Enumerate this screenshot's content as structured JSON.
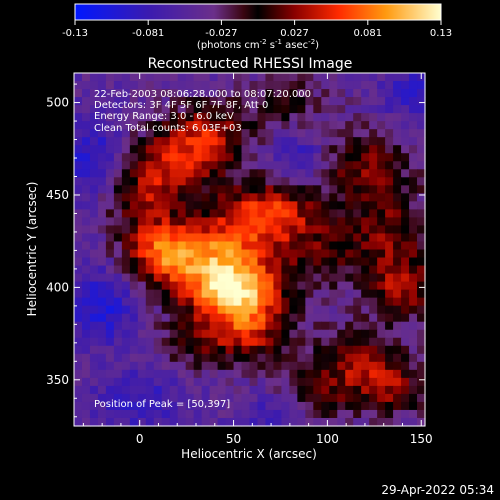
{
  "chart_data": {
    "type": "heatmap",
    "title": "Reconstructed RHESSI Image",
    "xlabel": "Heliocentric X (arcsec)",
    "ylabel": "Heliocentric Y (arcsec)",
    "xlim": [
      -35,
      152
    ],
    "ylim": [
      325,
      516
    ],
    "x_ticks": [
      0,
      50,
      100,
      150
    ],
    "y_ticks": [
      350,
      400,
      450,
      500
    ],
    "colorbar": {
      "range": [
        -0.13,
        0.13
      ],
      "ticks": [
        "-0.13",
        "-0.081",
        "-0.027",
        "0.027",
        "0.081",
        "0.13"
      ],
      "label": "(photons cm",
      "label_exp1": "-2",
      "label_mid": " s",
      "label_exp2": "-1",
      "label_end": " asec",
      "label_exp3": "-2",
      "label_close": ")"
    },
    "annotations": {
      "time_range": "22-Feb-2003 08:06:28.000 to 08:07:20.000",
      "detectors": "Detectors: 3F 4F 5F 6F 7F 8F, Att 0",
      "energy": "Energy Range: 3.0 - 6.0 keV",
      "clean": "Clean    Total counts: 6.03E+03",
      "peak": "Position of Peak = [50,397]"
    },
    "peak": [
      50,
      397
    ],
    "sources": [
      {
        "x": 50,
        "y": 397,
        "amp": 0.14,
        "sx": 18,
        "sy": 12
      },
      {
        "x": 38,
        "y": 418,
        "amp": 0.1,
        "sx": 22,
        "sy": 14
      },
      {
        "x": 68,
        "y": 440,
        "amp": 0.1,
        "sx": 18,
        "sy": 12
      },
      {
        "x": 10,
        "y": 420,
        "amp": 0.08,
        "sx": 14,
        "sy": 12
      },
      {
        "x": 20,
        "y": 470,
        "amp": 0.08,
        "sx": 18,
        "sy": 14
      },
      {
        "x": 40,
        "y": 485,
        "amp": 0.06,
        "sx": 14,
        "sy": 12
      },
      {
        "x": 0,
        "y": 450,
        "amp": 0.06,
        "sx": 14,
        "sy": 12
      },
      {
        "x": 60,
        "y": 375,
        "amp": 0.07,
        "sx": 14,
        "sy": 12
      },
      {
        "x": 30,
        "y": 370,
        "amp": 0.05,
        "sx": 14,
        "sy": 10
      },
      {
        "x": 120,
        "y": 465,
        "amp": 0.07,
        "sx": 16,
        "sy": 14
      },
      {
        "x": 135,
        "y": 430,
        "amp": 0.06,
        "sx": 14,
        "sy": 14
      },
      {
        "x": 140,
        "y": 400,
        "amp": 0.08,
        "sx": 12,
        "sy": 12
      },
      {
        "x": 100,
        "y": 420,
        "amp": 0.05,
        "sx": 16,
        "sy": 14
      },
      {
        "x": 115,
        "y": 360,
        "amp": 0.07,
        "sx": 16,
        "sy": 12
      },
      {
        "x": 135,
        "y": 345,
        "amp": 0.06,
        "sx": 12,
        "sy": 10
      },
      {
        "x": 95,
        "y": 340,
        "amp": 0.05,
        "sx": 14,
        "sy": 10
      },
      {
        "x": 80,
        "y": 500,
        "amp": 0.04,
        "sx": 14,
        "sy": 10
      },
      {
        "x": -20,
        "y": 390,
        "amp": -0.06,
        "sx": 12,
        "sy": 14
      },
      {
        "x": -25,
        "y": 470,
        "amp": -0.05,
        "sx": 14,
        "sy": 16
      },
      {
        "x": 85,
        "y": 470,
        "amp": -0.04,
        "sx": 10,
        "sy": 10
      },
      {
        "x": 145,
        "y": 505,
        "amp": -0.04,
        "sx": 12,
        "sy": 10
      },
      {
        "x": 0,
        "y": 340,
        "amp": -0.04,
        "sx": 16,
        "sy": 12
      },
      {
        "x": 75,
        "y": 330,
        "amp": -0.04,
        "sx": 14,
        "sy": 8
      }
    ],
    "grid": false
  },
  "footer": {
    "timestamp": "29-Apr-2022 05:34"
  }
}
